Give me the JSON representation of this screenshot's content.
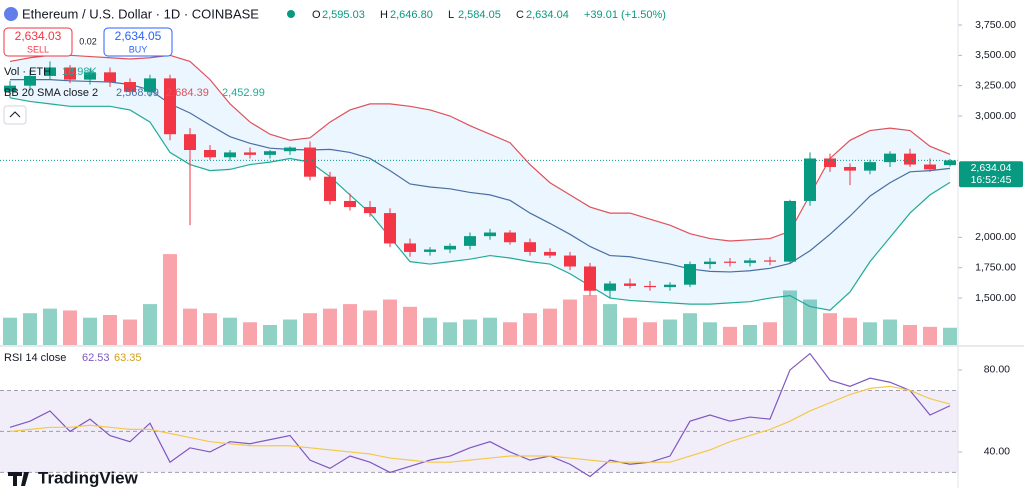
{
  "header": {
    "title": "Ethereum / U.S. Dollar · 1D · COINBASE",
    "ohlc": [
      {
        "key": "O",
        "label": "2,595.03"
      },
      {
        "key": "H",
        "label": "2,646.80"
      },
      {
        "key": "L",
        "label": "2,584.05"
      },
      {
        "key": "C",
        "label": "2,634.04"
      }
    ],
    "change": "+39.01 (+1.50%)",
    "sell": {
      "price": "2,634.03",
      "label": "SELL"
    },
    "spread": "0.02",
    "buy": {
      "price": "2,634.05",
      "label": "BUY"
    }
  },
  "footer": {
    "logo": "TradingView"
  },
  "chart_data": [
    {
      "type": "candlestick",
      "up_color": "#089981",
      "down_color": "#f23645",
      "ylim": [
        1113,
        3956
      ],
      "yticks": [
        {
          "value": 1500,
          "label": "1,500.00"
        },
        {
          "value": 1750,
          "label": "1,750.00"
        },
        {
          "value": 2000,
          "label": "2,000.00"
        },
        {
          "value": 3000,
          "label": "3,000.00"
        },
        {
          "value": 3250,
          "label": "3,250.00"
        },
        {
          "value": 3500,
          "label": "3,500.00"
        },
        {
          "value": 3750,
          "label": "3,750.00"
        }
      ],
      "grid": false,
      "open": [
        3200,
        3250,
        3330,
        3400,
        3300,
        3360,
        3280,
        3200,
        3310,
        2850,
        2720,
        2660,
        2700,
        2680,
        2710,
        2740,
        2500,
        2300,
        2250,
        2200,
        1950,
        1880,
        1900,
        1930,
        2010,
        2040,
        1960,
        1880,
        1850,
        1760,
        1560,
        1620,
        1600,
        1590,
        1610,
        1780,
        1800,
        1790,
        1810,
        1800,
        2300,
        2650,
        2580,
        2550,
        2620,
        2690,
        2600,
        2595.03
      ],
      "high": [
        3290,
        3380,
        3450,
        3420,
        3390,
        3400,
        3310,
        3340,
        3340,
        2900,
        2760,
        2720,
        2740,
        2720,
        2750,
        2790,
        2540,
        2360,
        2300,
        2240,
        1990,
        1920,
        1950,
        2040,
        2070,
        2060,
        1990,
        1910,
        1880,
        1790,
        1640,
        1660,
        1640,
        1630,
        1800,
        1830,
        1830,
        1830,
        1840,
        2310,
        2700,
        2690,
        2610,
        2640,
        2710,
        2730,
        2650,
        2646.8
      ],
      "low": [
        3150,
        3210,
        3300,
        3270,
        3260,
        3240,
        3170,
        3160,
        2800,
        2100,
        2640,
        2630,
        2650,
        2650,
        2680,
        2470,
        2270,
        2220,
        2170,
        1920,
        1840,
        1850,
        1870,
        1900,
        1980,
        1940,
        1850,
        1830,
        1730,
        1520,
        1500,
        1580,
        1560,
        1560,
        1590,
        1740,
        1760,
        1760,
        1770,
        1780,
        2260,
        2540,
        2430,
        2520,
        2580,
        2580,
        2540,
        2584.05
      ],
      "close": [
        3250,
        3330,
        3400,
        3300,
        3360,
        3280,
        3200,
        3310,
        2850,
        2720,
        2660,
        2700,
        2680,
        2710,
        2740,
        2500,
        2300,
        2250,
        2200,
        1950,
        1880,
        1900,
        1930,
        2010,
        2040,
        1960,
        1880,
        1850,
        1760,
        1560,
        1620,
        1600,
        1590,
        1610,
        1780,
        1800,
        1790,
        1810,
        1800,
        2300,
        2650,
        2580,
        2550,
        2620,
        2690,
        2600,
        2560,
        2634.04
      ],
      "last_price": {
        "label": "2,634.04",
        "time": "16:52:45"
      },
      "bollinger": {
        "name": "BB 20 SMA close 2",
        "upper": {
          "color": "#e0515a",
          "label": "2,684.39",
          "values": [
            3450,
            3480,
            3500,
            3500,
            3490,
            3480,
            3470,
            3480,
            3500,
            3450,
            3300,
            3100,
            2950,
            2850,
            2800,
            2820,
            2950,
            3050,
            3100,
            3100,
            3080,
            3050,
            3000,
            2920,
            2850,
            2780,
            2600,
            2450,
            2350,
            2250,
            2200,
            2200,
            2150,
            2100,
            2030,
            1990,
            1970,
            1980,
            1990,
            2050,
            2350,
            2650,
            2800,
            2880,
            2900,
            2880,
            2750,
            2684.39
          ]
        },
        "basis": {
          "color": "#4a6fa5",
          "label": "2,568.69",
          "values": [
            3300,
            3300,
            3300,
            3290,
            3285,
            3280,
            3260,
            3215,
            3100,
            3025,
            2925,
            2830,
            2775,
            2735,
            2725,
            2720,
            2725,
            2700,
            2650,
            2550,
            2440,
            2415,
            2400,
            2370,
            2350,
            2305,
            2200,
            2115,
            2025,
            1925,
            1850,
            1840,
            1810,
            1780,
            1740,
            1720,
            1715,
            1725,
            1745,
            1785,
            1890,
            2025,
            2175,
            2340,
            2450,
            2540,
            2550,
            2568.69
          ]
        },
        "lower": {
          "color": "#22ab94",
          "label": "2,452.99",
          "values": [
            3150,
            3120,
            3100,
            3080,
            3080,
            3080,
            3050,
            2950,
            2700,
            2600,
            2550,
            2560,
            2600,
            2620,
            2650,
            2620,
            2500,
            2350,
            2200,
            2000,
            1800,
            1780,
            1800,
            1820,
            1850,
            1830,
            1800,
            1780,
            1700,
            1600,
            1500,
            1480,
            1470,
            1460,
            1450,
            1450,
            1460,
            1470,
            1500,
            1520,
            1430,
            1400,
            1550,
            1800,
            2000,
            2200,
            2350,
            2452.99
          ]
        },
        "fill": "rgba(33,150,243,0.09)"
      },
      "volume": {
        "name": "Vol · ETH",
        "label": "18.98K",
        "ylim": [
          0,
          110
        ],
        "values": [
          30,
          35,
          40,
          38,
          30,
          33,
          28,
          45,
          100,
          40,
          35,
          30,
          25,
          22,
          28,
          35,
          40,
          45,
          38,
          50,
          42,
          30,
          25,
          28,
          30,
          25,
          35,
          40,
          50,
          55,
          45,
          30,
          25,
          28,
          35,
          25,
          20,
          22,
          25,
          60,
          50,
          35,
          30,
          25,
          28,
          22,
          20,
          18.98
        ]
      }
    },
    {
      "type": "line",
      "title": "RSI 14 close",
      "ylim": [
        22.4,
        91.2
      ],
      "yticks": [
        {
          "value": 40,
          "label": "40.00"
        },
        {
          "value": 80,
          "label": "80.00"
        }
      ],
      "levels": [
        70,
        50,
        30
      ],
      "band_fill": "rgba(126,87,194,0.1)",
      "series": [
        {
          "color": "#7e57c2",
          "label": "62.53",
          "values": [
            52,
            55,
            60,
            50,
            56,
            48,
            45,
            54,
            35,
            42,
            40,
            45,
            44,
            46,
            48,
            36,
            32,
            38,
            35,
            30,
            33,
            36,
            38,
            42,
            45,
            40,
            36,
            38,
            34,
            28,
            36,
            34,
            35,
            38,
            55,
            58,
            55,
            57,
            56,
            80,
            88,
            75,
            72,
            76,
            74,
            70,
            58,
            62.53
          ]
        },
        {
          "color": "#f2c94c",
          "label": "63.35",
          "values": [
            50,
            51,
            52,
            52,
            53,
            52,
            51,
            51,
            49,
            47,
            45,
            44,
            43,
            43,
            43,
            42,
            41,
            40,
            39,
            37,
            36,
            35,
            35,
            36,
            37,
            38,
            38,
            38,
            37,
            36,
            35,
            35,
            35,
            35,
            38,
            41,
            45,
            48,
            51,
            55,
            60,
            64,
            68,
            71,
            72,
            70,
            66,
            63.35
          ]
        }
      ]
    }
  ]
}
